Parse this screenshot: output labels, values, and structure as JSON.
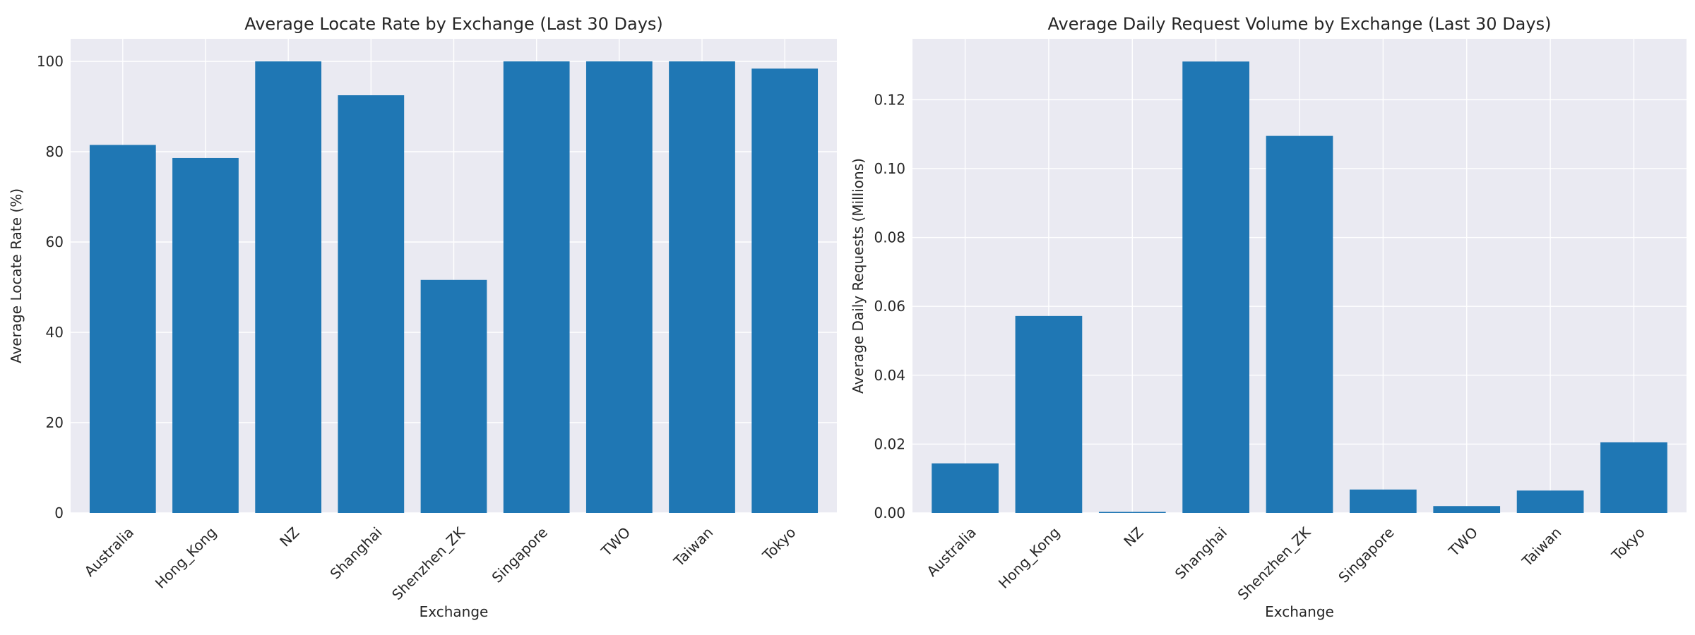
{
  "colors": {
    "bar": "#1f77b4",
    "plot_background": "#eaeaf2",
    "grid": "#ffffff",
    "text": "#262626"
  },
  "chart_data": [
    {
      "type": "bar",
      "title": "Average Locate Rate by Exchange (Last 30 Days)",
      "xlabel": "Exchange",
      "ylabel": "Average Locate Rate (%)",
      "categories": [
        "Australia",
        "Hong_Kong",
        "NZ",
        "Shanghai",
        "Shenzhen_ZK",
        "Singapore",
        "TWO",
        "Taiwan",
        "Tokyo"
      ],
      "values": [
        81.5,
        78.6,
        100,
        92.5,
        51.6,
        100,
        100,
        100,
        98.4
      ],
      "ylim": [
        0,
        105
      ],
      "yticks": [
        0,
        20,
        40,
        60,
        80,
        100
      ],
      "ytick_labels": [
        "0",
        "20",
        "40",
        "60",
        "80",
        "100"
      ],
      "grid": true,
      "legend": "none"
    },
    {
      "type": "bar",
      "title": "Average Daily Request Volume by Exchange (Last 30 Days)",
      "xlabel": "Exchange",
      "ylabel": "Average Daily Requests (Millions)",
      "categories": [
        "Australia",
        "Hong_Kong",
        "NZ",
        "Shanghai",
        "Shenzhen_ZK",
        "Singapore",
        "TWO",
        "Taiwan",
        "Tokyo"
      ],
      "values": [
        0.0144,
        0.0572,
        0.0003,
        0.1311,
        0.1095,
        0.0068,
        0.002,
        0.0065,
        0.0205
      ],
      "ylim": [
        0,
        0.1377
      ],
      "yticks": [
        0,
        0.02,
        0.04,
        0.06,
        0.08,
        0.1,
        0.12
      ],
      "ytick_labels": [
        "0.00",
        "0.02",
        "0.04",
        "0.06",
        "0.08",
        "0.10",
        "0.12"
      ],
      "grid": true,
      "legend": "none"
    }
  ]
}
